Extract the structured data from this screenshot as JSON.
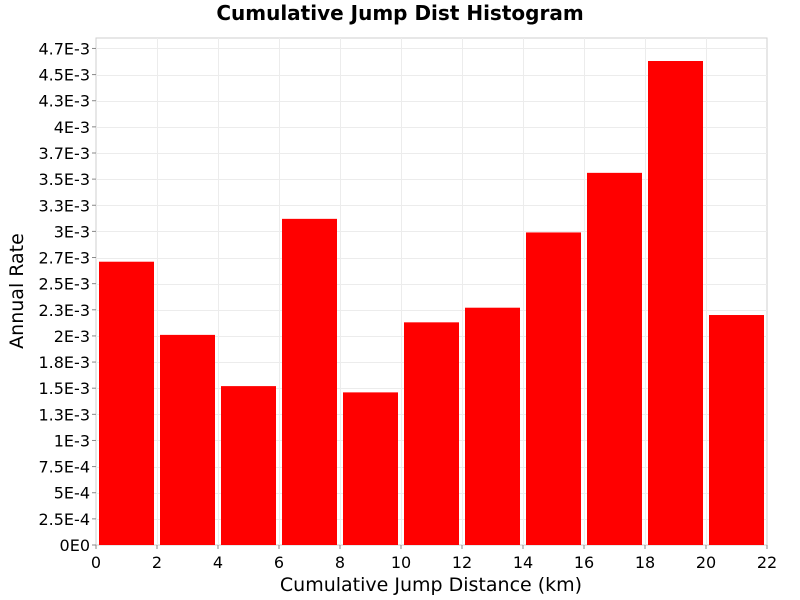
{
  "chart_data": {
    "type": "bar",
    "title": "Cumulative Jump Dist Histogram",
    "xlabel": "Cumulative Jump Distance (km)",
    "ylabel": "Annual Rate",
    "xlim": [
      0,
      22
    ],
    "ylim": [
      0,
      0.00485
    ],
    "x_ticks": [
      0,
      2,
      4,
      6,
      8,
      10,
      12,
      14,
      16,
      18,
      20,
      22
    ],
    "y_ticks": [
      0,
      0.00025,
      0.0005,
      0.00075,
      0.001,
      0.00125,
      0.0015,
      0.00175,
      0.002,
      0.00225,
      0.0025,
      0.00275,
      0.003,
      0.00325,
      0.0035,
      0.00375,
      0.004,
      0.00425,
      0.0045,
      0.00475
    ],
    "y_tick_labels": [
      "0E0",
      "2.5E-4",
      "5E-4",
      "7.5E-4",
      "1E-3",
      "1.3E-3",
      "1.5E-3",
      "1.8E-3",
      "2E-3",
      "2.3E-3",
      "2.5E-3",
      "2.7E-3",
      "3E-3",
      "3.3E-3",
      "3.5E-3",
      "3.7E-3",
      "4E-3",
      "4.3E-3",
      "4.5E-3",
      "4.7E-3"
    ],
    "bin_width": 2,
    "bars": [
      {
        "x": 1,
        "value": 0.00271
      },
      {
        "x": 3,
        "value": 0.00201
      },
      {
        "x": 5,
        "value": 0.00152
      },
      {
        "x": 7,
        "value": 0.00312
      },
      {
        "x": 9,
        "value": 0.00146
      },
      {
        "x": 11,
        "value": 0.00213
      },
      {
        "x": 13,
        "value": 0.00227
      },
      {
        "x": 15,
        "value": 0.00299
      },
      {
        "x": 17,
        "value": 0.00356
      },
      {
        "x": 19,
        "value": 0.00463
      },
      {
        "x": 21,
        "value": 0.0022
      }
    ],
    "bar_color": "#ff0000",
    "grid": true,
    "legend": false
  }
}
